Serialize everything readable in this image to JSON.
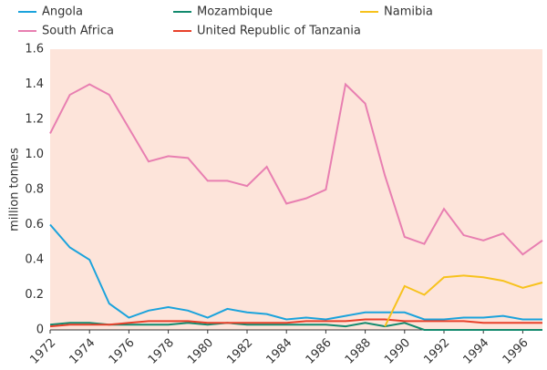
{
  "chart_data": {
    "type": "line",
    "y_label": "million tonnes",
    "x": [
      1972,
      1973,
      1974,
      1975,
      1976,
      1977,
      1978,
      1979,
      1980,
      1981,
      1982,
      1983,
      1984,
      1985,
      1986,
      1987,
      1988,
      1989,
      1990,
      1991,
      1992,
      1993,
      1994,
      1995,
      1996,
      1997
    ],
    "xlim": [
      1972,
      1997
    ],
    "xticks": [
      1972,
      1974,
      1976,
      1978,
      1980,
      1982,
      1984,
      1986,
      1988,
      1990,
      1992,
      1994,
      1996
    ],
    "ylim": [
      0,
      1.6
    ],
    "yticks": [
      0,
      0.2,
      0.4,
      0.6,
      0.8,
      {
        "value": 1,
        "label": "1.0"
      },
      1.2,
      1.4,
      1.6
    ],
    "series": [
      {
        "name": "Angola",
        "color": "#1ba3dc",
        "values": [
          0.6,
          0.47,
          0.4,
          0.15,
          0.07,
          0.11,
          0.13,
          0.11,
          0.07,
          0.12,
          0.1,
          0.09,
          0.06,
          0.07,
          0.06,
          0.08,
          0.1,
          0.1,
          0.1,
          0.06,
          0.06,
          0.07,
          0.07,
          0.08,
          0.06,
          0.06
        ]
      },
      {
        "name": "South Africa",
        "color": "#e87fb1",
        "values": [
          1.12,
          1.34,
          1.4,
          1.34,
          1.15,
          0.96,
          0.99,
          0.98,
          0.85,
          0.85,
          0.82,
          0.93,
          0.72,
          0.75,
          0.8,
          1.4,
          1.29,
          0.88,
          0.53,
          0.49,
          0.69,
          0.54,
          0.51,
          0.55,
          0.43,
          0.51
        ]
      },
      {
        "name": "Mozambique",
        "color": "#138a6e",
        "values": [
          0.03,
          0.04,
          0.04,
          0.03,
          0.03,
          0.03,
          0.03,
          0.04,
          0.03,
          0.04,
          0.03,
          0.03,
          0.03,
          0.03,
          0.03,
          0.02,
          0.04,
          0.02,
          0.04,
          0,
          0,
          0,
          0,
          0,
          0,
          0
        ]
      },
      {
        "name": "United Republic of Tanzania",
        "color": "#e8402a",
        "values": [
          0.02,
          0.03,
          0.03,
          0.03,
          0.04,
          0.05,
          0.05,
          0.05,
          0.04,
          0.04,
          0.04,
          0.04,
          0.04,
          0.05,
          0.05,
          0.05,
          0.06,
          0.06,
          0.05,
          0.05,
          0.05,
          0.05,
          0.04,
          0.04,
          0.04,
          0.04
        ]
      },
      {
        "name": "Namibia",
        "color": "#f7c21d",
        "values": [
          null,
          null,
          null,
          null,
          null,
          null,
          null,
          null,
          null,
          null,
          null,
          null,
          null,
          null,
          null,
          null,
          null,
          0.02,
          0.25,
          0.2,
          0.3,
          0.31,
          0.3,
          0.28,
          0.24,
          0.27
        ]
      }
    ]
  }
}
